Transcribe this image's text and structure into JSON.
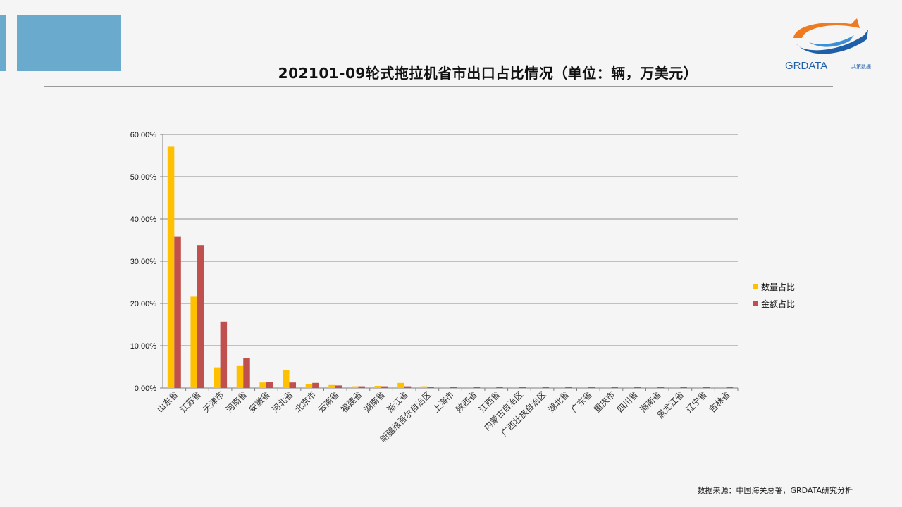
{
  "header": {
    "title": "202101-09轮式拖拉机省市出口占比情况（单位：辆，万美元）"
  },
  "logo": {
    "text": "GRDATA",
    "subtext": "共策数据"
  },
  "footer": {
    "source": "数据来源：中国海关总署，GRDATA研究分析"
  },
  "colors": {
    "quantity": "#ffc000",
    "amount": "#c0504d",
    "accent": "#6aaacc"
  },
  "chart_data": {
    "type": "bar",
    "categories": [
      "山东省",
      "江苏省",
      "天津市",
      "河南省",
      "安徽省",
      "河北省",
      "北京市",
      "云南省",
      "福建省",
      "湖南省",
      "浙江省",
      "新疆维吾尔自治区",
      "上海市",
      "陕西省",
      "江西省",
      "内蒙古自治区",
      "广西壮族自治区",
      "湖北省",
      "广东省",
      "重庆市",
      "四川省",
      "海南省",
      "黑龙江省",
      "辽宁省",
      "吉林省"
    ],
    "series": [
      {
        "name": "数量占比",
        "values": [
          57.1,
          21.6,
          4.9,
          5.2,
          1.3,
          4.2,
          0.9,
          0.7,
          0.4,
          0.5,
          1.2,
          0.4,
          0.2,
          0.2,
          0.2,
          0.2,
          0.2,
          0.2,
          0.2,
          0.2,
          0.2,
          0.2,
          0.2,
          0.2,
          0.2
        ]
      },
      {
        "name": "金额占比",
        "values": [
          35.9,
          33.8,
          15.7,
          7.0,
          1.5,
          1.3,
          1.2,
          0.6,
          0.4,
          0.4,
          0.4,
          0.2,
          0.2,
          0.2,
          0.2,
          0.2,
          0.2,
          0.2,
          0.2,
          0.2,
          0.2,
          0.2,
          0.2,
          0.2,
          0.2
        ]
      }
    ],
    "yticks": [
      "0.00%",
      "10.00%",
      "20.00%",
      "30.00%",
      "40.00%",
      "50.00%",
      "60.00%"
    ],
    "ylim": [
      0,
      60
    ],
    "grid": true,
    "legend_position": "right"
  }
}
